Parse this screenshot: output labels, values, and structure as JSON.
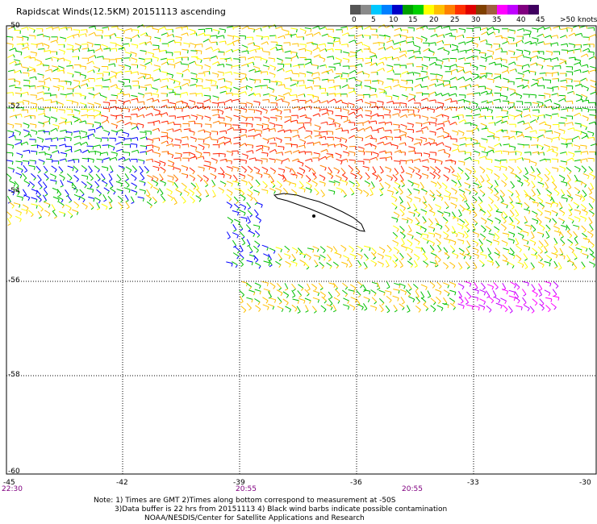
{
  "title": "Rapidscat Winds(12.5KM) 20151113 ascending",
  "legend": {
    "labels": [
      "0",
      "5",
      "10",
      "15",
      "20",
      "25",
      "30",
      "35",
      "40",
      "45",
      ">50 knots"
    ],
    "colors": [
      "#555555",
      "#8a8a8a",
      "#00c8ff",
      "#0080ff",
      "#0000c8",
      "#00a000",
      "#00d000",
      "#ffff00",
      "#ffc000",
      "#ff8000",
      "#ff3000",
      "#e00000",
      "#804000",
      "#a06040",
      "#ff00ff",
      "#c000ff",
      "#800080",
      "#400060"
    ]
  },
  "map": {
    "lat_labels": [
      "-50",
      "-52",
      "-54",
      "-56",
      "-58",
      "-60"
    ],
    "lon_labels": [
      "-45",
      "-42",
      "-39",
      "-36",
      "-33",
      "-30"
    ],
    "times": [
      "22:30",
      "20:55",
      "20:55"
    ]
  },
  "notes": [
    "Note: 1) Times are GMT 2)Times along bottom correspond to measurement at -50S",
    "3)Data buffer is 22 hrs from 20151113 4) Black wind barbs indicate possible contamination",
    "NOAA/NESDIS/Center for Satellite Applications and Research"
  ]
}
